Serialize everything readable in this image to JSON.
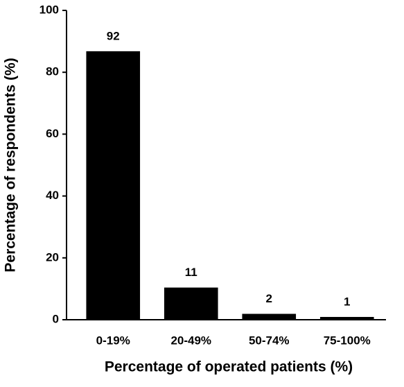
{
  "chart_data": {
    "type": "bar",
    "x_label": "Percentage of operated patients (%)",
    "y_label": "Percentage of respondents (%)",
    "categories": [
      "0-19%",
      "20-49%",
      "50-74%",
      "75-100%"
    ],
    "values": [
      86.8,
      10.4,
      1.9,
      0.9
    ],
    "counts": [
      92,
      11,
      2,
      1
    ],
    "color": "#000000",
    "ylim": [
      0,
      100
    ],
    "yticks": [
      0,
      20,
      40,
      60,
      80,
      100
    ],
    "grid": false
  }
}
